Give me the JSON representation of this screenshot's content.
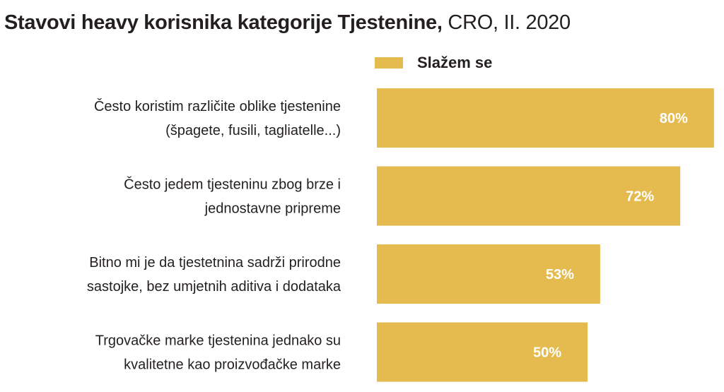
{
  "title": {
    "main": "Stavovi heavy korisnika kategorije Tjestenine,",
    "sub": "CRO, II. 2020"
  },
  "colors": {
    "bar": "#e5bb4f",
    "text": "#231f20",
    "value_text": "#ffffff"
  },
  "chart_data": {
    "type": "bar",
    "orientation": "horizontal",
    "title": "Stavovi heavy korisnika kategorije Tjestenine, CRO, II. 2020",
    "categories": [
      [
        "Često koristim različite oblike tjestenine",
        "(špagete, fusili, tagliatelle...)"
      ],
      [
        "Često jedem tjesteninu zbog brze i",
        "jednostavne pripreme"
      ],
      [
        "Bitno mi je da tjestetnina sadrži prirodne",
        "sastojke, bez umjetnih aditiva i dodataka"
      ],
      [
        "Trgovačke marke tjestenina jednako su",
        "kvalitetne kao proizvođačke marke"
      ]
    ],
    "series": [
      {
        "name": "Slažem se",
        "values": [
          80,
          72,
          53,
          50
        ],
        "labels": [
          "80%",
          "72%",
          "53%",
          "50%"
        ]
      }
    ],
    "xlim": [
      0,
      100
    ],
    "grid": false,
    "legend": "top"
  }
}
